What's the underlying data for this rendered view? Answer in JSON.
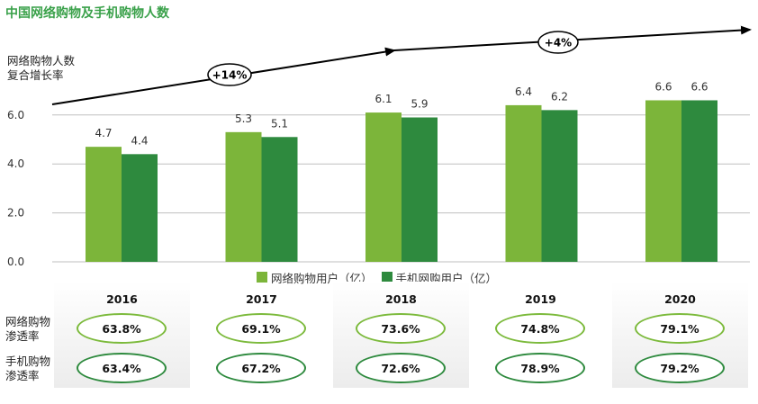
{
  "title": "中国网络购物及手机购物人数",
  "cagr": {
    "label_line1": "网络购物人数",
    "label_line2": "复合增长率",
    "badge1": "+14%",
    "badge2": "+4%"
  },
  "colors": {
    "title": "#3aa14a",
    "series_light": "#7cb53a",
    "series_dark": "#2e8a3e",
    "grid": "#bfbfbf"
  },
  "chart_data": {
    "type": "bar",
    "categories": [
      "2016",
      "2017",
      "2018",
      "2019",
      "2020"
    ],
    "series": [
      {
        "name": "网络购物用户（亿）",
        "values": [
          4.7,
          5.3,
          6.1,
          6.4,
          6.6
        ]
      },
      {
        "name": "手机网购用户（亿）",
        "values": [
          4.4,
          5.1,
          5.9,
          6.2,
          6.6
        ]
      }
    ],
    "value_labels": {
      "s0": [
        "4.7",
        "5.3",
        "6.1",
        "6.4",
        "6.6"
      ],
      "s1": [
        "4.4",
        "5.1",
        "5.9",
        "6.2",
        "6.6"
      ]
    },
    "yticks": [
      "0.0",
      "2.0",
      "4.0",
      "6.0"
    ],
    "ylim": [
      0,
      7
    ],
    "grid": true,
    "legend_position": "bottom"
  },
  "table": {
    "years": [
      "2016",
      "2017",
      "2018",
      "2019",
      "2020"
    ],
    "rows": [
      {
        "label_line1": "网络购物",
        "label_line2": "渗透率",
        "values": [
          "63.8%",
          "69.1%",
          "73.6%",
          "74.8%",
          "79.1%"
        ]
      },
      {
        "label_line1": "手机购物",
        "label_line2": "渗透率",
        "values": [
          "63.4%",
          "67.2%",
          "72.6%",
          "78.9%",
          "79.2%"
        ]
      }
    ]
  }
}
